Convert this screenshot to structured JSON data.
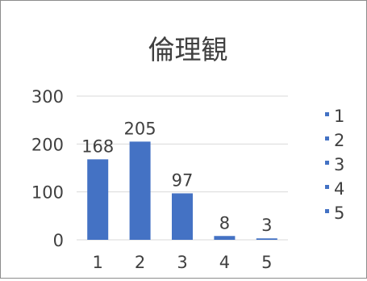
{
  "chart_data": {
    "type": "bar",
    "title": "倫理観",
    "categories": [
      "1",
      "2",
      "3",
      "4",
      "5"
    ],
    "values": [
      168,
      205,
      97,
      8,
      3
    ],
    "data_labels": [
      "168",
      "205",
      "97",
      "8",
      "3"
    ],
    "ylim": [
      0,
      300
    ],
    "yticks": [
      "0",
      "100",
      "200",
      "300"
    ],
    "grid": true,
    "legend": {
      "placement": "right",
      "entries": [
        "1",
        "2",
        "3",
        "4",
        "5"
      ]
    },
    "colors": {
      "bar": "#4472c4",
      "grid": "#d9d9d9",
      "text": "#404040"
    }
  }
}
